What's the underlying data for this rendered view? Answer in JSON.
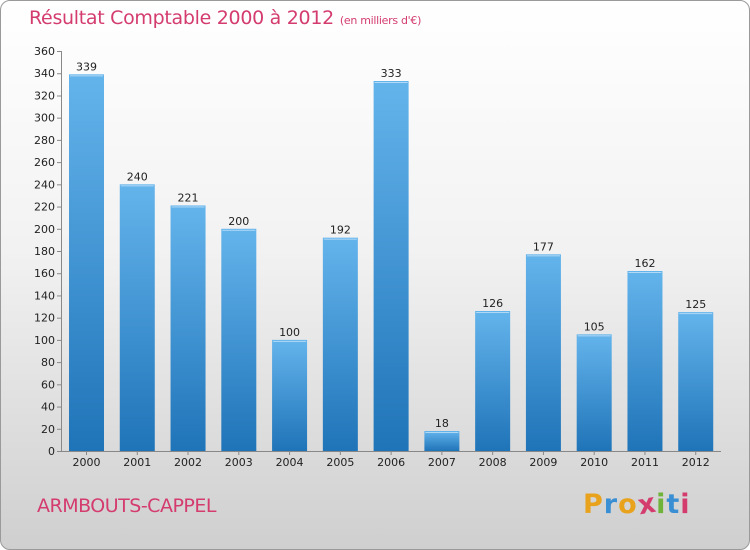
{
  "header": {
    "title": "Résultat Comptable 2000 à 2012",
    "unit": "(en milliers d'€)"
  },
  "footer": {
    "commune": "ARMBOUTS-CAPPEL",
    "logo": {
      "text": "Proxiti",
      "letters": [
        "P",
        "r",
        "o",
        "x",
        "i",
        "t",
        "i"
      ],
      "colors": [
        "#e8a21c",
        "#3a8fd4",
        "#e8a21c",
        "#d43c6e",
        "#6fb33a",
        "#3a8fd4",
        "#d43c6e"
      ]
    }
  },
  "colors": {
    "bar_light": "#64b4ec",
    "bar_dark": "#1f74b8",
    "title": "#d43c6e",
    "axis": "#888888"
  },
  "chart_data": {
    "type": "bar",
    "title": "Résultat Comptable 2000 à 2012",
    "xlabel": "",
    "ylabel": "",
    "categories": [
      "2000",
      "2001",
      "2002",
      "2003",
      "2004",
      "2005",
      "2006",
      "2007",
      "2008",
      "2009",
      "2010",
      "2011",
      "2012"
    ],
    "values": [
      339,
      240,
      221,
      200,
      100,
      192,
      333,
      18,
      126,
      177,
      105,
      162,
      125
    ],
    "data_labels": [
      "339",
      "240",
      "221",
      "200",
      "100",
      "192",
      "333",
      "18",
      "126",
      "177",
      "105",
      "162",
      "125"
    ],
    "ylim": [
      0,
      360
    ],
    "yticks": [
      0,
      20,
      40,
      60,
      80,
      100,
      120,
      140,
      160,
      180,
      200,
      220,
      240,
      260,
      280,
      300,
      320,
      340,
      360
    ],
    "grid": false,
    "legend": "none"
  }
}
